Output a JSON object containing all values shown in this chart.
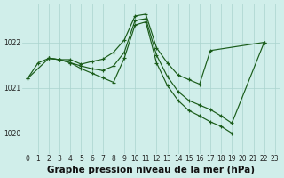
{
  "line_color": "#1a5c1a",
  "bg_color": "#d0eeea",
  "grid_color": "#aad4ce",
  "ylabel_values": [
    1020,
    1021,
    1022
  ],
  "xlabel_label": "Graphe pression niveau de la mer (hPa)",
  "ylim": [
    1019.55,
    1022.85
  ],
  "xlim": [
    -0.5,
    23.5
  ],
  "tick_fontsize": 5.5,
  "label_fontsize": 7.5,
  "line1_x": [
    0,
    1,
    2,
    3,
    4,
    5,
    6,
    7,
    8,
    9,
    10,
    11,
    12,
    13,
    14,
    15,
    16,
    17,
    22
  ],
  "line1_y": [
    1021.2,
    1021.55,
    1021.65,
    1021.62,
    1021.62,
    1021.52,
    1021.58,
    1021.63,
    1021.78,
    1022.05,
    1022.58,
    1022.62,
    1021.88,
    1021.55,
    1021.28,
    1021.18,
    1021.08,
    1021.82,
    1022.0
  ],
  "line2_x": [
    0,
    2,
    3,
    4,
    5,
    6,
    7,
    8,
    9,
    10,
    11,
    12,
    13,
    14,
    15,
    16,
    17,
    18,
    19,
    22
  ],
  "line2_y": [
    1021.2,
    1021.65,
    1021.62,
    1021.55,
    1021.48,
    1021.42,
    1021.38,
    1021.48,
    1021.78,
    1022.48,
    1022.52,
    1021.72,
    1021.25,
    1020.92,
    1020.72,
    1020.62,
    1020.52,
    1020.38,
    1020.22,
    1022.0
  ],
  "line3_x": [
    2,
    3,
    4,
    5,
    6,
    7,
    8,
    9,
    10,
    11,
    12,
    13,
    14,
    15,
    16,
    17,
    18,
    19
  ],
  "line3_y": [
    1021.65,
    1021.62,
    1021.55,
    1021.42,
    1021.32,
    1021.22,
    1021.12,
    1021.65,
    1022.38,
    1022.45,
    1021.55,
    1021.05,
    1020.72,
    1020.5,
    1020.38,
    1020.25,
    1020.15,
    1020.0
  ],
  "hours": [
    0,
    1,
    2,
    3,
    4,
    5,
    6,
    7,
    8,
    9,
    10,
    11,
    12,
    13,
    14,
    15,
    16,
    17,
    18,
    19,
    20,
    21,
    22,
    23
  ]
}
